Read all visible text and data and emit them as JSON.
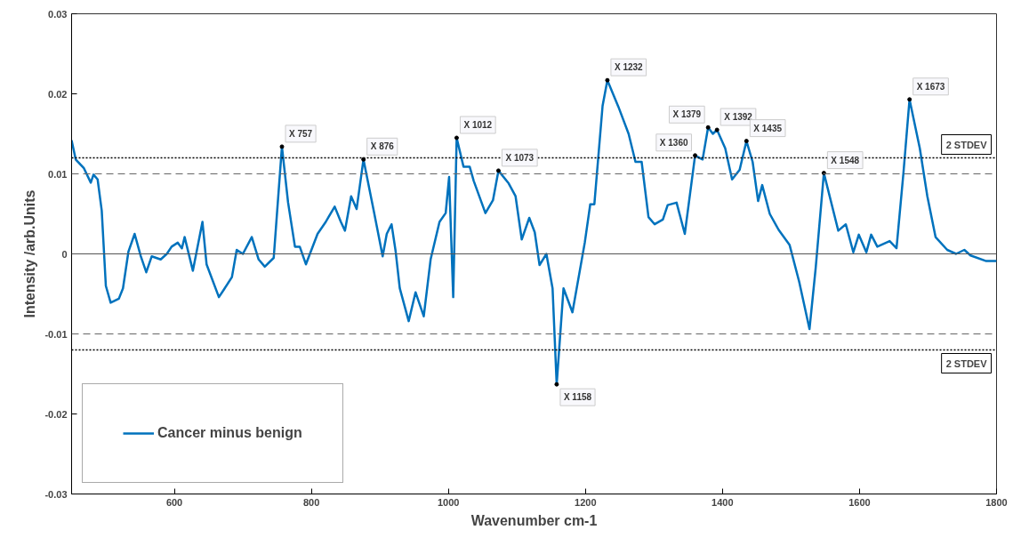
{
  "chart_data": {
    "type": "line",
    "xlabel": "Wavenumber cm-1",
    "ylabel": "Intensity /arb.Units",
    "xlim": [
      450,
      1800
    ],
    "xticks": [
      600,
      800,
      1000,
      1200,
      1400,
      1600,
      1800
    ],
    "ylim": [
      -0.03,
      0.03
    ],
    "yticks": [
      -0.03,
      -0.02,
      -0.01,
      0,
      0.01,
      0.02,
      0.03
    ],
    "grid": false,
    "legend": "bottom left",
    "marker": "none",
    "line_style": "solid",
    "series": [
      {
        "name": "Cancer minus benign",
        "color": "#0072bd",
        "x": [
          450,
          456,
          468,
          478,
          482,
          488,
          494,
          500,
          507,
          519,
          525,
          533,
          542,
          551,
          559,
          567,
          580,
          589,
          596,
          605,
          611,
          615,
          627,
          641,
          647,
          665,
          672,
          684,
          691,
          700,
          713,
          723,
          732,
          745,
          757,
          766,
          776,
          783,
          792,
          809,
          821,
          825,
          834,
          843,
          849,
          858,
          866,
          876,
          891,
          904,
          910,
          917,
          923,
          929,
          942,
          952,
          964,
          974,
          987,
          996,
          1001,
          1007,
          1012,
          1022,
          1031,
          1037,
          1054,
          1065,
          1073,
          1088,
          1098,
          1107,
          1118,
          1126,
          1133,
          1143,
          1152,
          1158,
          1168,
          1181,
          1199,
          1207,
          1213,
          1225,
          1232,
          1248,
          1263,
          1273,
          1282,
          1292,
          1301,
          1313,
          1320,
          1333,
          1345,
          1360,
          1371,
          1379,
          1386,
          1392,
          1404,
          1414,
          1425,
          1435,
          1444,
          1452,
          1458,
          1469,
          1482,
          1498,
          1512,
          1527,
          1536,
          1548,
          1569,
          1580,
          1591,
          1599,
          1610,
          1617,
          1626,
          1644,
          1654,
          1664,
          1673,
          1688,
          1699,
          1711,
          1728,
          1741,
          1753,
          1762,
          1785,
          1800
        ],
        "values": [
          0.0142,
          0.0118,
          0.0107,
          0.0089,
          0.0099,
          0.0093,
          0.0054,
          -0.004,
          -0.0061,
          -0.0056,
          -0.0043,
          0.0003,
          0.0025,
          -0.0003,
          -0.0023,
          -0.0003,
          -0.0007,
          0,
          0.0009,
          0.0014,
          0.0007,
          0.0021,
          -0.0021,
          0.004,
          -0.0013,
          -0.0054,
          -0.0045,
          -0.0029,
          0.0005,
          0,
          0.0021,
          -0.0007,
          -0.0016,
          -0.0005,
          0.0134,
          0.0064,
          0.0009,
          0.0009,
          -0.0013,
          0.0025,
          0.004,
          0.0046,
          0.0059,
          0.004,
          0.0029,
          0.0072,
          0.0056,
          0.0118,
          0.0054,
          -0.0003,
          0.0025,
          0.0037,
          0.0003,
          -0.0043,
          -0.0084,
          -0.0048,
          -0.0078,
          -0.0007,
          0.004,
          0.0051,
          0.0096,
          -0.0054,
          0.0145,
          0.0109,
          0.0109,
          0.0091,
          0.0051,
          0.0067,
          0.0104,
          0.0088,
          0.0072,
          0.0018,
          0.0045,
          0.0027,
          -0.0014,
          0,
          -0.0043,
          -0.0163,
          -0.0043,
          -0.0073,
          0.0014,
          0.0062,
          0.0062,
          0.0185,
          0.0217,
          0.0184,
          0.015,
          0.0115,
          0.0115,
          0.0046,
          0.0037,
          0.0043,
          0.0061,
          0.0064,
          0.0025,
          0.0123,
          0.0118,
          0.0158,
          0.015,
          0.0155,
          0.0132,
          0.0093,
          0.0105,
          0.0141,
          0.0115,
          0.0066,
          0.0086,
          0.005,
          0.003,
          0.0011,
          -0.0035,
          -0.0094,
          -0.0018,
          0.0101,
          0.0029,
          0.0037,
          0.0002,
          0.0024,
          0.0002,
          0.0024,
          0.0009,
          0.0016,
          0.0007,
          0.01,
          0.0193,
          0.0132,
          0.0072,
          0.0021,
          0.0005,
          0,
          0.0005,
          -0.0002,
          -0.0009,
          -0.0009
        ]
      }
    ],
    "ref_lines": [
      {
        "axis": "y",
        "value": 0,
        "color": "#555555",
        "line_style": "solid"
      },
      {
        "axis": "y",
        "value": 0.012,
        "label": "2 STDEV",
        "color": "#000000",
        "line_style": "dotted"
      },
      {
        "axis": "y",
        "value": -0.012,
        "label": "2 STDEV",
        "color": "#000000",
        "line_style": "dotted"
      },
      {
        "axis": "y",
        "value": 0.01,
        "color": "#666666",
        "line_style": "dashed"
      },
      {
        "axis": "y",
        "value": -0.01,
        "color": "#666666",
        "line_style": "dashed"
      }
    ],
    "annotations": [
      {
        "text": "X 757",
        "x": 757,
        "y": 0.0134
      },
      {
        "text": "X 876",
        "x": 876,
        "y": 0.0118
      },
      {
        "text": "X 1012",
        "x": 1012,
        "y": 0.0145
      },
      {
        "text": "X 1073",
        "x": 1073,
        "y": 0.0104
      },
      {
        "text": "X 1158",
        "x": 1158,
        "y": -0.0163
      },
      {
        "text": "X 1232",
        "x": 1232,
        "y": 0.0217
      },
      {
        "text": "X 1360",
        "x": 1360,
        "y": 0.0123
      },
      {
        "text": "X 1379",
        "x": 1379,
        "y": 0.0158
      },
      {
        "text": "X 1392",
        "x": 1392,
        "y": 0.0155
      },
      {
        "text": "X 1435",
        "x": 1435,
        "y": 0.0141
      },
      {
        "text": "X 1548",
        "x": 1548,
        "y": 0.0101
      },
      {
        "text": "X 1673",
        "x": 1673,
        "y": 0.0193
      }
    ]
  }
}
